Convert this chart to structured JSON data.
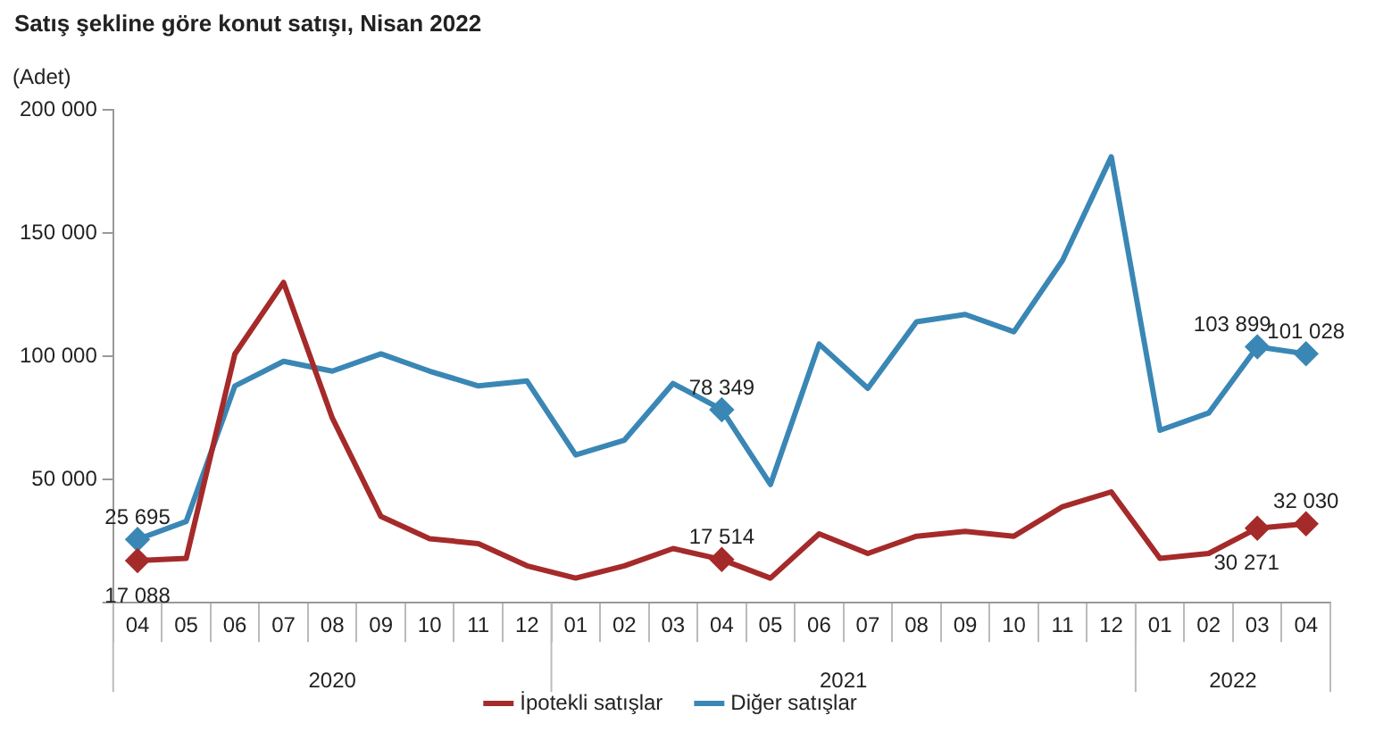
{
  "chart_data": {
    "type": "line",
    "title": "Satış şekline göre konut satışı, Nisan 2022",
    "ylabel": "(Adet)",
    "categories": [
      "04",
      "05",
      "06",
      "07",
      "08",
      "09",
      "10",
      "11",
      "12",
      "01",
      "02",
      "03",
      "04",
      "05",
      "06",
      "07",
      "08",
      "09",
      "10",
      "11",
      "12",
      "01",
      "02",
      "03",
      "04"
    ],
    "annotations": [
      "2020",
      "2021",
      "2022"
    ],
    "series": [
      {
        "name": "İpotekli satışlar",
        "color": "#a52a2a",
        "values": [
          17088,
          18000,
          101000,
          130000,
          75000,
          35000,
          26000,
          24000,
          15000,
          10000,
          15000,
          22000,
          17514,
          10000,
          28000,
          20000,
          27000,
          29000,
          27000,
          39000,
          45000,
          18000,
          20000,
          30271,
          32030
        ],
        "value_labels": [
          "17 088",
          null,
          null,
          null,
          null,
          null,
          null,
          null,
          null,
          null,
          null,
          null,
          "17 514",
          null,
          null,
          null,
          null,
          null,
          null,
          null,
          null,
          null,
          null,
          "30 271",
          "32 030"
        ]
      },
      {
        "name": "Diğer satışlar",
        "color": "#3a87b5",
        "values": [
          25695,
          33000,
          88000,
          98000,
          94000,
          101000,
          94000,
          88000,
          90000,
          60000,
          66000,
          89000,
          78349,
          48000,
          105000,
          87000,
          114000,
          117000,
          110000,
          139000,
          181000,
          70000,
          77000,
          103899,
          101028
        ],
        "value_labels": [
          "25 695",
          null,
          null,
          null,
          null,
          null,
          null,
          null,
          null,
          null,
          null,
          null,
          "78 349",
          null,
          null,
          null,
          null,
          null,
          null,
          null,
          null,
          null,
          null,
          "103 899",
          "101 028"
        ]
      }
    ],
    "ylim": [
      0,
      200000
    ],
    "yticks": [
      {
        "value": 0,
        "label": null
      },
      50000,
      100000,
      150000,
      200000
    ],
    "grid": false,
    "legend": "bottom",
    "line_style": "solid"
  }
}
